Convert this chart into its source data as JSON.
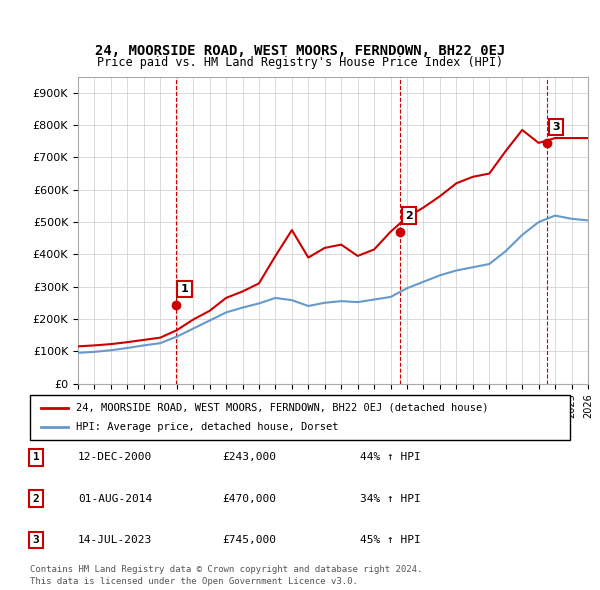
{
  "title": "24, MOORSIDE ROAD, WEST MOORS, FERNDOWN, BH22 0EJ",
  "subtitle": "Price paid vs. HM Land Registry's House Price Index (HPI)",
  "legend_label_red": "24, MOORSIDE ROAD, WEST MOORS, FERNDOWN, BH22 0EJ (detached house)",
  "legend_label_blue": "HPI: Average price, detached house, Dorset",
  "table_rows": [
    {
      "num": "1",
      "date": "12-DEC-2000",
      "price": "£243,000",
      "pct": "44% ↑ HPI"
    },
    {
      "num": "2",
      "date": "01-AUG-2014",
      "price": "£470,000",
      "pct": "34% ↑ HPI"
    },
    {
      "num": "3",
      "date": "14-JUL-2023",
      "price": "£745,000",
      "pct": "45% ↑ HPI"
    }
  ],
  "footnote1": "Contains HM Land Registry data © Crown copyright and database right 2024.",
  "footnote2": "This data is licensed under the Open Government Licence v3.0.",
  "red_color": "#cc0000",
  "blue_color": "#6699cc",
  "dashed_red_color": "#cc0000",
  "grid_color": "#cccccc",
  "ylim": [
    0,
    950000
  ],
  "yticks": [
    0,
    100000,
    200000,
    300000,
    400000,
    500000,
    600000,
    700000,
    800000,
    900000
  ],
  "hpi_years": [
    1995,
    1996,
    1997,
    1998,
    1999,
    2000,
    2001,
    2002,
    2003,
    2004,
    2005,
    2006,
    2007,
    2008,
    2009,
    2010,
    2011,
    2012,
    2013,
    2014,
    2015,
    2016,
    2017,
    2018,
    2019,
    2020,
    2021,
    2022,
    2023,
    2024,
    2025,
    2026
  ],
  "hpi_values": [
    95000,
    98000,
    103000,
    110000,
    118000,
    125000,
    145000,
    170000,
    195000,
    220000,
    235000,
    248000,
    265000,
    258000,
    240000,
    250000,
    255000,
    252000,
    260000,
    268000,
    295000,
    315000,
    335000,
    350000,
    360000,
    370000,
    410000,
    460000,
    500000,
    520000,
    510000,
    505000
  ],
  "price_years": [
    1995,
    1996,
    1997,
    1998,
    1999,
    2000,
    2001,
    2002,
    2003,
    2004,
    2005,
    2006,
    2007,
    2008,
    2009,
    2010,
    2011,
    2012,
    2013,
    2014,
    2015,
    2016,
    2017,
    2018,
    2019,
    2020,
    2021,
    2022,
    2023,
    2024,
    2025,
    2026
  ],
  "price_values": [
    115000,
    118000,
    122000,
    128000,
    135000,
    142000,
    165000,
    198000,
    225000,
    265000,
    285000,
    310000,
    395000,
    475000,
    390000,
    420000,
    430000,
    395000,
    415000,
    470000,
    515000,
    545000,
    580000,
    620000,
    640000,
    650000,
    720000,
    785000,
    745000,
    760000,
    760000,
    760000
  ],
  "sale_points": [
    {
      "year": 2000.95,
      "price": 243000,
      "label": "1"
    },
    {
      "year": 2014.58,
      "price": 470000,
      "label": "2"
    },
    {
      "year": 2023.53,
      "price": 745000,
      "label": "3"
    }
  ],
  "vline_years": [
    2000.95,
    2014.58,
    2023.53
  ],
  "xmin": 1995,
  "xmax": 2026
}
